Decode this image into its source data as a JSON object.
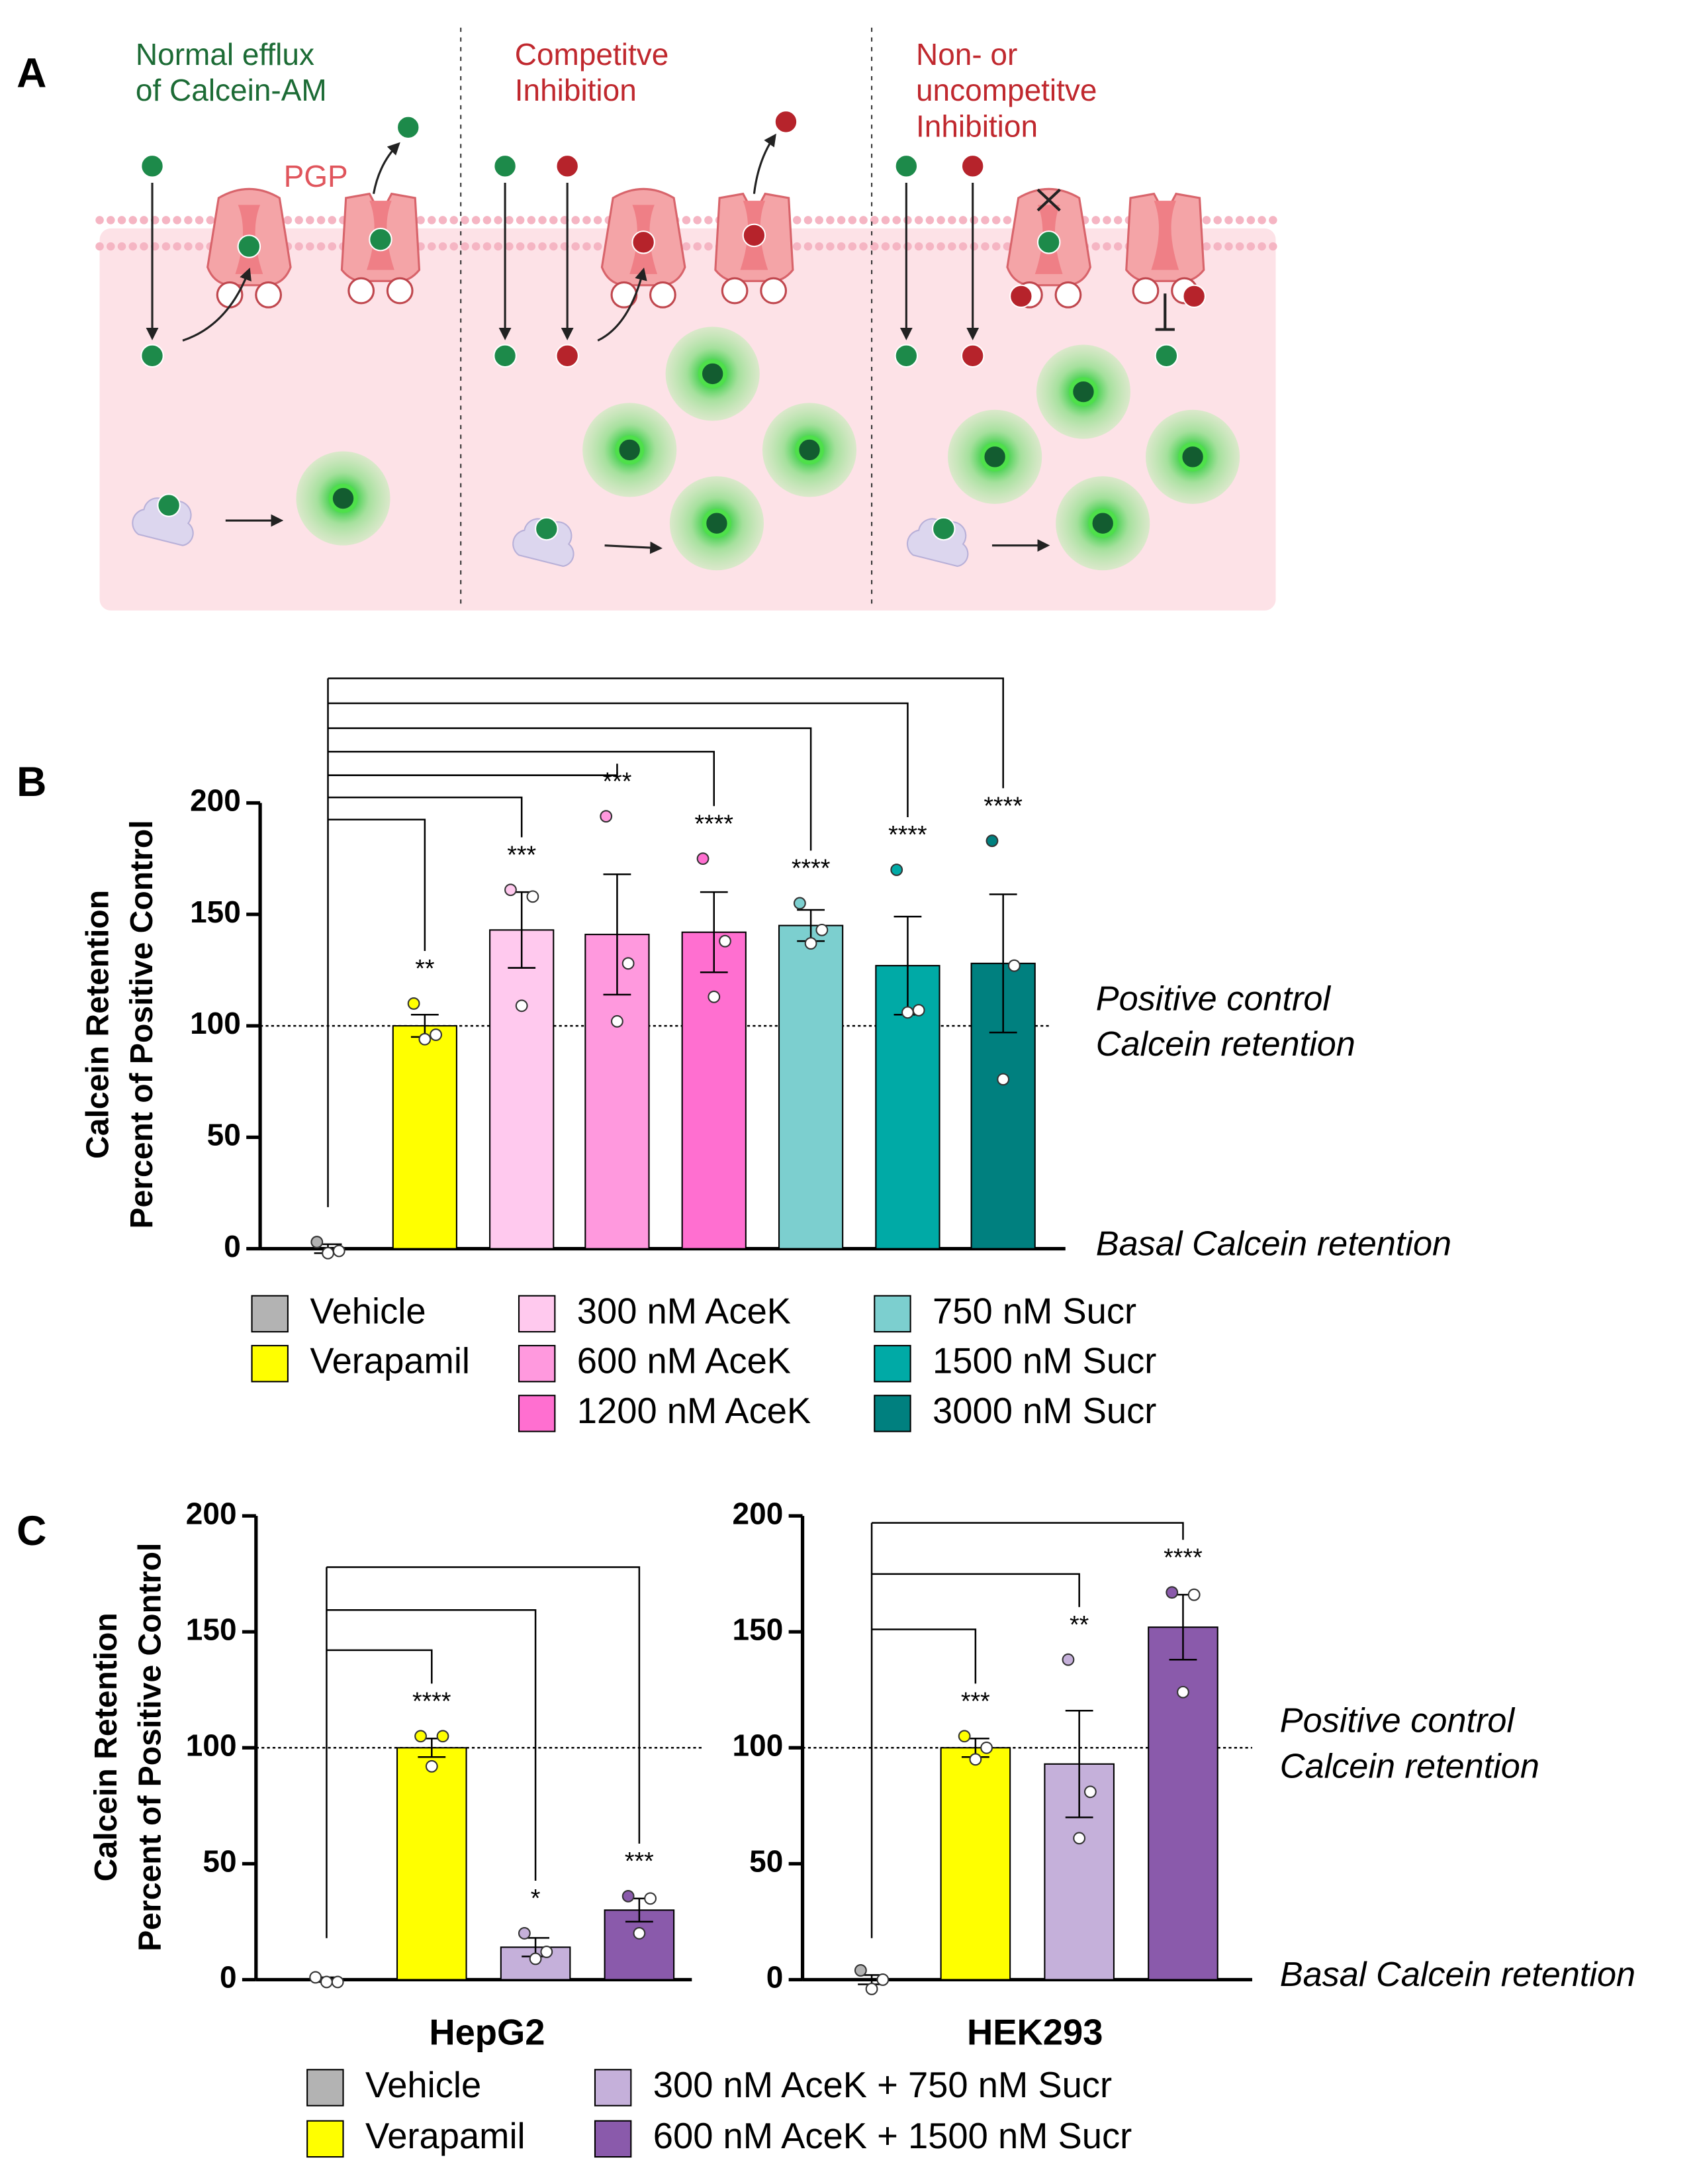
{
  "diagram": {
    "panel_label": "A",
    "protein_label": "PGP",
    "sections": [
      {
        "title": [
          "Normal efflux",
          "of Calcein-AM"
        ]
      },
      {
        "title": [
          "Competitve",
          "Inhibition"
        ]
      },
      {
        "title": [
          "Non- or",
          "uncompetitve",
          "Inhibition"
        ]
      }
    ]
  },
  "chart_data": [
    {
      "type": "bar",
      "panel_label": "B",
      "ylabel": [
        "Calcein Retention",
        "Percent of Positive Control"
      ],
      "categories": [
        "Vehicle",
        "Verapamil",
        "300 nM AceK",
        "600 nM AceK",
        "1200 nM AceK",
        "750 nM Sucr",
        "1500 nM Sucr",
        "3000 nM Sucr"
      ],
      "colors": [
        "#b3b3b3",
        "#ffff00",
        "#ffc9ee",
        "#ff99de",
        "#ff6fd0",
        "#7ccfcf",
        "#00aaa6",
        "#00807f"
      ],
      "values": [
        0,
        100,
        143,
        141,
        142,
        145,
        127,
        128
      ],
      "errors": [
        2,
        5,
        17,
        27,
        18,
        7,
        22,
        31
      ],
      "points": [
        [
          3,
          -1,
          -2
        ],
        [
          110,
          96,
          94
        ],
        [
          161,
          158,
          109
        ],
        [
          194,
          128,
          102
        ],
        [
          175,
          138,
          113
        ],
        [
          155,
          143,
          137
        ],
        [
          170,
          107,
          106
        ],
        [
          183,
          127,
          76
        ]
      ],
      "significance": [
        null,
        "**",
        "***",
        "***",
        "****",
        "****",
        "****",
        "****"
      ],
      "reference_line": 100,
      "annotations": [
        "Positive control",
        "Calcein retention",
        "Basal Calcein retention"
      ],
      "ylim": [
        0,
        200
      ],
      "yticks": [
        0,
        50,
        100,
        150,
        200
      ]
    },
    {
      "type": "bar",
      "panel_label": "C",
      "ylabel": [
        "Calcein Retention",
        "Percent of Positive Control"
      ],
      "xlabel": "HepG2",
      "categories": [
        "Vehicle",
        "Verapamil",
        "300 nM AceK + 750 nM Sucr",
        "600 nM AceK + 1500 nM Sucr"
      ],
      "colors": [
        "#b3b3b3",
        "#ffff00",
        "#c5b0da",
        "#8a5aab"
      ],
      "values": [
        0,
        100,
        14,
        30
      ],
      "errors": [
        1,
        4,
        4,
        5
      ],
      "points": [
        [
          1,
          -1,
          -1
        ],
        [
          105,
          105,
          92
        ],
        [
          20,
          12,
          9
        ],
        [
          36,
          35,
          20
        ]
      ],
      "significance": [
        null,
        "****",
        "*",
        "***"
      ],
      "reference_line": 100,
      "ylim": [
        0,
        200
      ],
      "yticks": [
        0,
        50,
        100,
        150,
        200
      ]
    },
    {
      "type": "bar",
      "xlabel": "HEK293",
      "values": [
        0,
        100,
        93,
        152
      ],
      "errors": [
        2,
        4,
        23,
        14
      ],
      "colors": [
        "#b3b3b3",
        "#ffff00",
        "#c5b0da",
        "#8a5aab"
      ],
      "points": [
        [
          4,
          0,
          -4
        ],
        [
          105,
          100,
          95
        ],
        [
          138,
          81,
          61
        ],
        [
          167,
          166,
          124
        ]
      ],
      "significance": [
        null,
        "***",
        "**",
        "****"
      ],
      "reference_line": 100,
      "annotations": [
        "Positive control",
        "Calcein retention",
        "Basal Calcein retention"
      ],
      "ylim": [
        0,
        200
      ],
      "yticks": [
        0,
        50,
        100,
        150,
        200
      ]
    }
  ]
}
